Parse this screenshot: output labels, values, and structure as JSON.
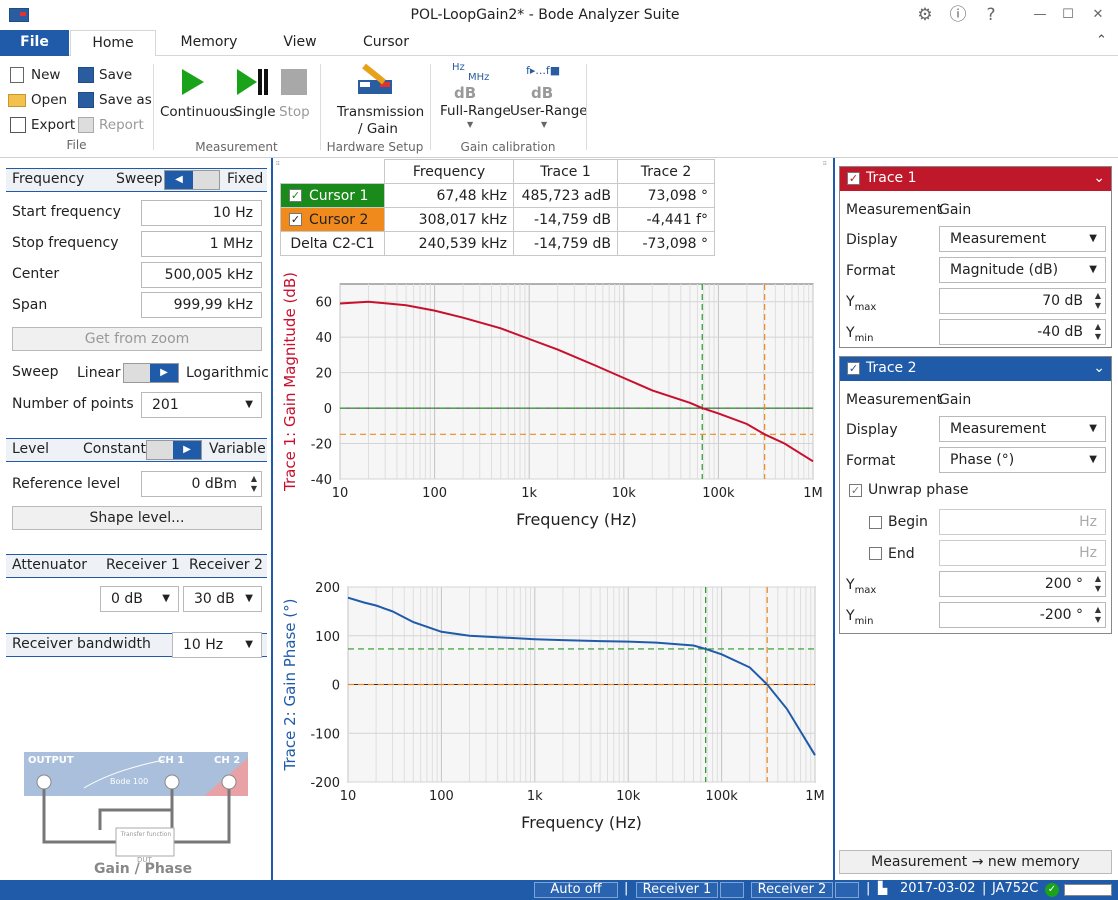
{
  "window": {
    "title": "POL-LoopGain2* - Bode Analyzer Suite",
    "gear": "⚙",
    "info": "ⓘ",
    "help": "?",
    "min": "—",
    "max": "☐",
    "close": "✕",
    "collapse": "⌃"
  },
  "tabs": [
    "File",
    "Home",
    "Memory",
    "View",
    "Cursor"
  ],
  "ribbon": {
    "file": {
      "new": "New",
      "open": "Open",
      "export": "Export",
      "save": "Save",
      "save_as": "Save as",
      "report": "Report",
      "group": "File"
    },
    "measurement": {
      "continuous": "Continuous",
      "single": "Single",
      "stop": "Stop",
      "group": "Measurement"
    },
    "hardware": {
      "transmission": "Transmission",
      "gain": "/ Gain",
      "group": "Hardware Setup"
    },
    "calibration": {
      "full_range": "Full-Range",
      "user_range": "User-Range",
      "group": "Gain calibration",
      "hz_top": "Hz",
      "hz_bottom": "MHz",
      "db": "dB",
      "f_label": "f▸...f■"
    }
  },
  "left": {
    "freq": {
      "title": "Frequency",
      "sweep": "Sweep",
      "fixed": "Fixed",
      "start_label": "Start frequency",
      "start_value": "10 Hz",
      "stop_label": "Stop frequency",
      "stop_value": "1 MHz",
      "center_label": "Center",
      "center_value": "500,005 kHz",
      "span_label": "Span",
      "span_value": "999,99 kHz",
      "get_from_zoom": "Get from zoom",
      "sweep_label": "Sweep",
      "linear": "Linear",
      "logarithmic": "Logarithmic",
      "points_label": "Number of points",
      "points_value": "201"
    },
    "level": {
      "title": "Level",
      "constant": "Constant",
      "variable": "Variable",
      "ref_label": "Reference level",
      "ref_value": "0 dBm",
      "shape": "Shape level..."
    },
    "attenuator": {
      "title": "Attenuator",
      "r1": "Receiver 1",
      "r2": "Receiver 2",
      "r1_value": "0 dB",
      "r2_value": "30 dB"
    },
    "bandwidth": {
      "title": "Receiver bandwidth",
      "value": "10 Hz"
    },
    "diagram": {
      "output": "OUTPUT",
      "ch1": "CH 1",
      "ch2": "CH 2",
      "device": "Bode 100",
      "transfer": "Transfer function",
      "dut": "DUT",
      "caption": "Gain / Phase"
    }
  },
  "cursor_table": {
    "headers": [
      "Frequency",
      "Trace 1",
      "Trace 2"
    ],
    "rows": [
      {
        "label": "Cursor 1",
        "freq": "67,48 kHz",
        "t1": "485,723 adB",
        "t2": "73,098 °",
        "color": "#1a8a1a"
      },
      {
        "label": "Cursor 2",
        "freq": "308,017 kHz",
        "t1": "-14,759 dB",
        "t2": "-4,441 f°",
        "color": "#f08a1c"
      },
      {
        "label": "Delta C2-C1",
        "freq": "240,539 kHz",
        "t1": "-14,759 dB",
        "t2": "-73,098 °"
      }
    ]
  },
  "chart_data": [
    {
      "type": "line",
      "ylabel": "Trace 1: Gain Magnitude (dB)",
      "xlabel": "Frequency (Hz)",
      "xscale": "log",
      "xlim": [
        10,
        1000000
      ],
      "ylim": [
        -40,
        70
      ],
      "xticks": [
        "10",
        "100",
        "1k",
        "10k",
        "100k",
        "1M"
      ],
      "yticks": [
        "60",
        "40",
        "20",
        "0",
        "-20",
        "-40"
      ],
      "x": [
        10,
        20,
        50,
        100,
        200,
        500,
        1000,
        2000,
        5000,
        10000,
        20000,
        50000,
        67480,
        100000,
        200000,
        308017,
        500000,
        1000000
      ],
      "y": [
        59,
        60,
        58,
        55,
        51,
        45,
        39,
        33,
        24,
        17,
        10,
        3,
        0,
        -3,
        -9,
        -14.8,
        -20,
        -30
      ],
      "cursor_x": [
        67480,
        308017
      ],
      "cursor_y": [
        0,
        -14.8
      ],
      "color": "#c8102e"
    },
    {
      "type": "line",
      "ylabel": "Trace 2: Gain Phase (°)",
      "xlabel": "Frequency (Hz)",
      "xscale": "log",
      "xlim": [
        10,
        1000000
      ],
      "ylim": [
        -200,
        200
      ],
      "xticks": [
        "10",
        "100",
        "1k",
        "10k",
        "100k",
        "1M"
      ],
      "yticks": [
        "200",
        "100",
        "0",
        "-100",
        "-200"
      ],
      "x": [
        10,
        15,
        20,
        30,
        50,
        100,
        200,
        500,
        1000,
        2000,
        5000,
        10000,
        20000,
        50000,
        67480,
        100000,
        200000,
        308017,
        500000,
        1000000
      ],
      "y": [
        178,
        168,
        162,
        150,
        128,
        108,
        100,
        96,
        93,
        91,
        89,
        88,
        86,
        80,
        73,
        62,
        35,
        0,
        -50,
        -145
      ],
      "cursor_x": [
        67480,
        308017
      ],
      "cursor_y": [
        73,
        0
      ],
      "color": "#1f5ba8"
    }
  ],
  "trace1": {
    "title": "Trace 1",
    "meas_label": "Measurement",
    "meas_value": "Gain",
    "display_label": "Display",
    "display_value": "Measurement",
    "format_label": "Format",
    "format_value": "Magnitude (dB)",
    "ymax_label": "Y",
    "ymax_sub": "max",
    "ymax_value": "70 dB",
    "ymin_label": "Y",
    "ymin_sub": "min",
    "ymin_value": "-40 dB"
  },
  "trace2": {
    "title": "Trace 2",
    "meas_label": "Measurement",
    "meas_value": "Gain",
    "display_label": "Display",
    "display_value": "Measurement",
    "format_label": "Format",
    "format_value": "Phase (°)",
    "unwrap": "Unwrap phase",
    "begin": "Begin",
    "end": "End",
    "hz": "Hz",
    "ymax_label": "Y",
    "ymax_sub": "max",
    "ymax_value": "200 °",
    "ymin_label": "Y",
    "ymin_sub": "min",
    "ymin_value": "-200 °"
  },
  "new_memory": "Measurement → new memory",
  "status": {
    "auto": "Auto off",
    "r1": "Receiver 1",
    "r2": "Receiver 2",
    "date": "2017-03-02",
    "device": "JA752C"
  }
}
